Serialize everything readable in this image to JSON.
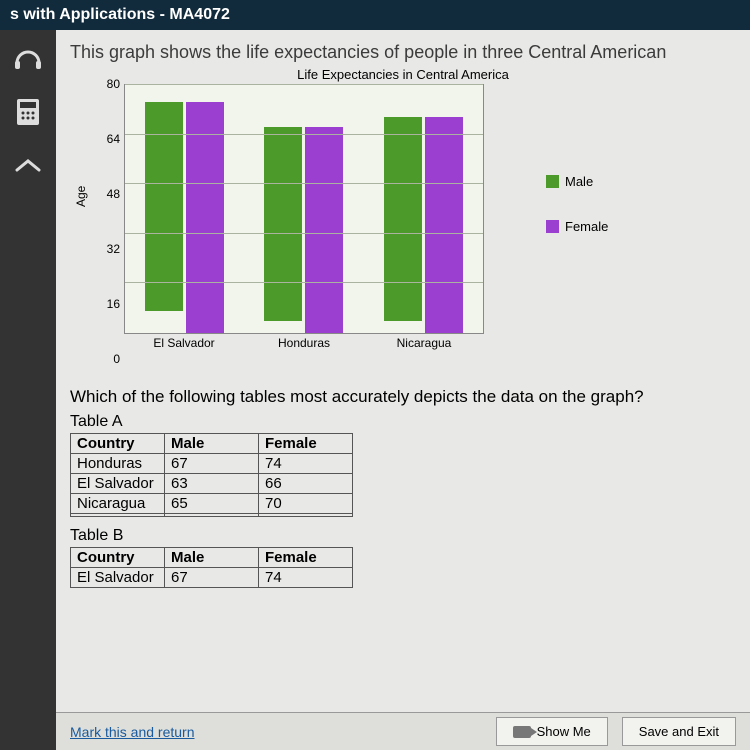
{
  "titlebar": "s with Applications - MA4072",
  "sidebar": {
    "items": [
      {
        "name": "audio-tool",
        "glyph": "⌒"
      },
      {
        "name": "calculator-tool",
        "glyph": "▦"
      },
      {
        "name": "collapse-tool",
        "glyph": "へ"
      }
    ]
  },
  "prompt": "This graph shows the life expectancies of people in three Central American",
  "question": "Which of the following tables most accurately depicts the data on the graph?",
  "chart": {
    "type": "bar",
    "title": "Life Expectancies in Central America",
    "ylabel": "Age",
    "ylim": [
      0,
      80
    ],
    "ytick_step": 16,
    "yticks": [
      0,
      16,
      32,
      48,
      64,
      80
    ],
    "plot_bg": "#f2f5eb",
    "grid_color": "#a9b3a0",
    "series": [
      {
        "label": "Male",
        "color": "#4c9a2a"
      },
      {
        "label": "Female",
        "color": "#9a3fcf"
      }
    ],
    "categories": [
      "El Salvador",
      "Honduras",
      "Nicaragua"
    ],
    "values": {
      "male": [
        67,
        62,
        65
      ],
      "female": [
        74,
        66,
        69
      ]
    }
  },
  "tableA": {
    "label": "Table A",
    "headers": [
      "Country",
      "Male",
      "Female"
    ],
    "rows": [
      [
        "Honduras",
        "67",
        "74"
      ],
      [
        "El Salvador",
        "63",
        "66"
      ],
      [
        "Nicaragua",
        "65",
        "70"
      ]
    ]
  },
  "tableB": {
    "label": "Table B",
    "headers": [
      "Country",
      "Male",
      "Female"
    ],
    "rows": [
      [
        "El Salvador",
        "67",
        "74"
      ]
    ]
  },
  "footer": {
    "mark_link": "Mark this and return",
    "show_me": "Show Me",
    "save_exit": "Save and Exit"
  }
}
